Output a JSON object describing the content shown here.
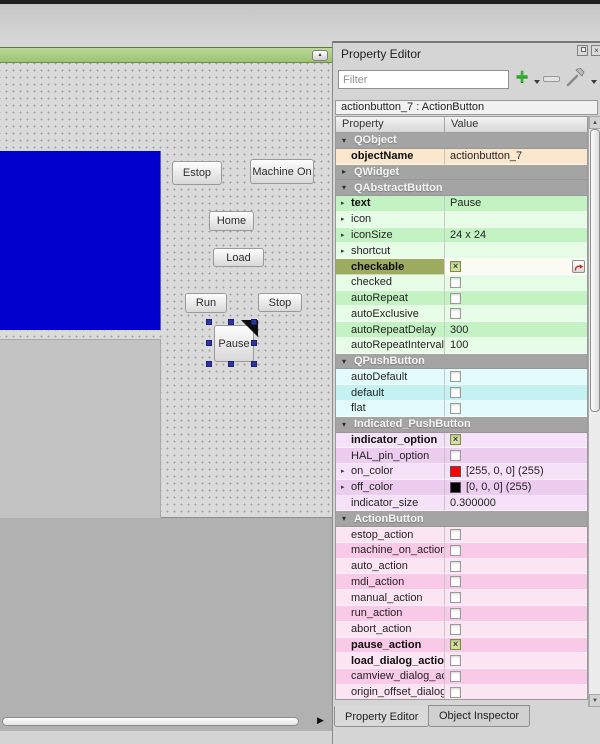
{
  "icons": {
    "collapse": "▴",
    "add": "+",
    "close": "×",
    "scroll_up": "▲",
    "scroll_down": "▼",
    "scroll_right": "▶",
    "expand_closed": "▸",
    "expand_open": "▾",
    "check_mark": "×"
  },
  "colors": {
    "canvas_widget_blue": "#0000cc",
    "titlebar_green": "#a6cc7c",
    "selection_handle": "#2c35a5",
    "on_color_swatch": "#ff0000",
    "off_color_swatch": "#000000"
  },
  "canvas": {
    "buttons": [
      {
        "id": "estop",
        "label": "Estop"
      },
      {
        "id": "machine_on",
        "label": "Machine On"
      },
      {
        "id": "home",
        "label": "Home"
      },
      {
        "id": "load",
        "label": "Load"
      },
      {
        "id": "run",
        "label": "Run"
      },
      {
        "id": "stop",
        "label": "Stop"
      }
    ],
    "selected_widget": {
      "id": "pause",
      "label": "Pause"
    }
  },
  "property_editor": {
    "title": "Property Editor",
    "filter_placeholder": "Filter",
    "object_bar": "actionbutton_7 : ActionButton",
    "columns": [
      "Property",
      "Value"
    ],
    "tabs": [
      {
        "label": "Property Editor",
        "active": true
      },
      {
        "label": "Object Inspector",
        "active": false
      }
    ],
    "rows": [
      {
        "kind": "group",
        "label": "QObject",
        "collapsed": false
      },
      {
        "kind": "prop",
        "label": "objectName",
        "shade": "peach",
        "bold": true,
        "value": {
          "type": "text",
          "text": "actionbutton_7"
        }
      },
      {
        "kind": "group",
        "label": "QWidget",
        "collapsed": true
      },
      {
        "kind": "group",
        "label": "QAbstractButton",
        "collapsed": false
      },
      {
        "kind": "prop",
        "label": "text",
        "shade": "green-med",
        "bold": true,
        "expandable": true,
        "value": {
          "type": "text",
          "text": "Pause"
        }
      },
      {
        "kind": "prop",
        "label": "icon",
        "shade": "green-light",
        "expandable": true,
        "value": {
          "type": "none"
        }
      },
      {
        "kind": "prop",
        "label": "iconSize",
        "shade": "green-med",
        "expandable": true,
        "value": {
          "type": "text",
          "text": "24 x 24"
        }
      },
      {
        "kind": "prop",
        "label": "shortcut",
        "shade": "green-light",
        "expandable": true,
        "value": {
          "type": "none"
        }
      },
      {
        "kind": "prop",
        "label": "checkable",
        "shade": "green-med",
        "bold": true,
        "selected": true,
        "value": {
          "type": "check",
          "checked": true,
          "reset": true
        }
      },
      {
        "kind": "prop",
        "label": "checked",
        "shade": "green-light",
        "value": {
          "type": "check",
          "checked": false
        }
      },
      {
        "kind": "prop",
        "label": "autoRepeat",
        "shade": "green-med",
        "value": {
          "type": "check",
          "checked": false
        }
      },
      {
        "kind": "prop",
        "label": "autoExclusive",
        "shade": "green-light",
        "value": {
          "type": "check",
          "checked": false
        }
      },
      {
        "kind": "prop",
        "label": "autoRepeatDelay",
        "shade": "green-med",
        "value": {
          "type": "text",
          "text": "300"
        }
      },
      {
        "kind": "prop",
        "label": "autoRepeatInterval",
        "shade": "green-light",
        "value": {
          "type": "text",
          "text": "100"
        }
      },
      {
        "kind": "group",
        "label": "QPushButton",
        "collapsed": false
      },
      {
        "kind": "prop",
        "label": "autoDefault",
        "shade": "cyan-light",
        "value": {
          "type": "check",
          "checked": false
        }
      },
      {
        "kind": "prop",
        "label": "default",
        "shade": "cyan-med",
        "value": {
          "type": "check",
          "checked": false
        }
      },
      {
        "kind": "prop",
        "label": "flat",
        "shade": "cyan-light",
        "value": {
          "type": "check",
          "checked": false
        }
      },
      {
        "kind": "group",
        "label": "Indicated_PushButton",
        "collapsed": false
      },
      {
        "kind": "prop",
        "label": "indicator_option",
        "shade": "purple-light",
        "bold": true,
        "value": {
          "type": "check",
          "checked": true
        }
      },
      {
        "kind": "prop",
        "label": "HAL_pin_option",
        "shade": "purple-med",
        "value": {
          "type": "check",
          "checked": false
        }
      },
      {
        "kind": "prop",
        "label": "on_color",
        "shade": "purple-light",
        "expandable": true,
        "value": {
          "type": "color",
          "swatch": "#ff0000",
          "text": "[255, 0, 0] (255)"
        }
      },
      {
        "kind": "prop",
        "label": "off_color",
        "shade": "purple-med",
        "expandable": true,
        "value": {
          "type": "color",
          "swatch": "#000000",
          "text": "[0, 0, 0] (255)"
        }
      },
      {
        "kind": "prop",
        "label": "indicator_size",
        "shade": "purple-light",
        "value": {
          "type": "text",
          "text": "0.300000"
        }
      },
      {
        "kind": "group",
        "label": "ActionButton",
        "collapsed": false
      },
      {
        "kind": "prop",
        "label": "estop_action",
        "shade": "pink-light",
        "value": {
          "type": "check",
          "checked": false
        }
      },
      {
        "kind": "prop",
        "label": "machine_on_action",
        "shade": "pink-med",
        "value": {
          "type": "check",
          "checked": false
        }
      },
      {
        "kind": "prop",
        "label": "auto_action",
        "shade": "pink-light",
        "value": {
          "type": "check",
          "checked": false
        }
      },
      {
        "kind": "prop",
        "label": "mdi_action",
        "shade": "pink-med",
        "value": {
          "type": "check",
          "checked": false
        }
      },
      {
        "kind": "prop",
        "label": "manual_action",
        "shade": "pink-light",
        "value": {
          "type": "check",
          "checked": false
        }
      },
      {
        "kind": "prop",
        "label": "run_action",
        "shade": "pink-med",
        "value": {
          "type": "check",
          "checked": false
        }
      },
      {
        "kind": "prop",
        "label": "abort_action",
        "shade": "pink-light",
        "value": {
          "type": "check",
          "checked": false
        }
      },
      {
        "kind": "prop",
        "label": "pause_action",
        "shade": "pink-med",
        "bold": true,
        "value": {
          "type": "check",
          "checked": true
        }
      },
      {
        "kind": "prop",
        "label": "load_dialog_action",
        "shade": "pink-light",
        "bold": true,
        "value": {
          "type": "check",
          "checked": false
        }
      },
      {
        "kind": "prop",
        "label": "camview_dialog_acti...",
        "shade": "pink-med",
        "value": {
          "type": "check",
          "checked": false
        }
      },
      {
        "kind": "prop",
        "label": "origin_offset_dialog",
        "shade": "pink-light",
        "value": {
          "type": "check",
          "checked": false
        }
      }
    ]
  }
}
